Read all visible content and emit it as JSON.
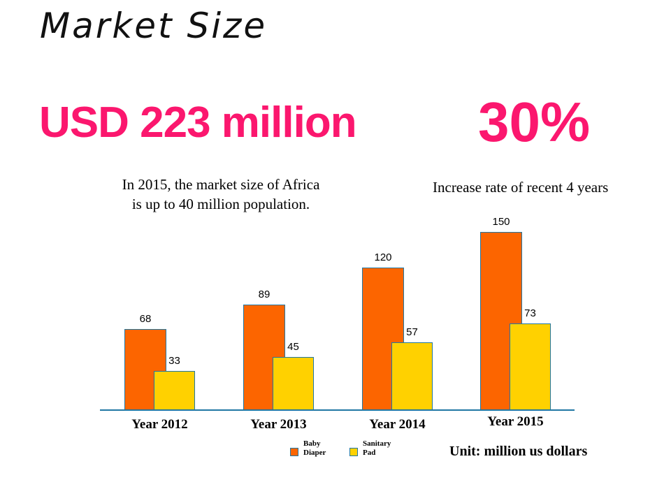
{
  "slide": {
    "title": "Market Size",
    "headline_value": "USD 223 million",
    "headline_rate": "30%",
    "caption_left_line1": "In 2015, the market size of Africa",
    "caption_left_line2": "is up to 40 million population.",
    "caption_right": "Increase rate of recent 4 years",
    "accent_pink": "#FB176E"
  },
  "chart_data": {
    "type": "bar",
    "title": "",
    "categories": [
      "Year 2012",
      "Year 2013",
      "Year 2014",
      "Year 2015"
    ],
    "series": [
      {
        "name": "Baby Diaper",
        "color": "#FC6500",
        "values": [
          68,
          89,
          120,
          150
        ]
      },
      {
        "name": "Sanitary Pad",
        "color": "#FFD100",
        "values": [
          33,
          45,
          57,
          73
        ]
      }
    ],
    "value_labels_shown": true,
    "grid": false,
    "legend_position": "bottom",
    "ylim": [
      0,
      160
    ],
    "axis_color": "#2077A4",
    "bar_border_color": "#2077A4",
    "unit_label": "Unit: million us dollars"
  }
}
